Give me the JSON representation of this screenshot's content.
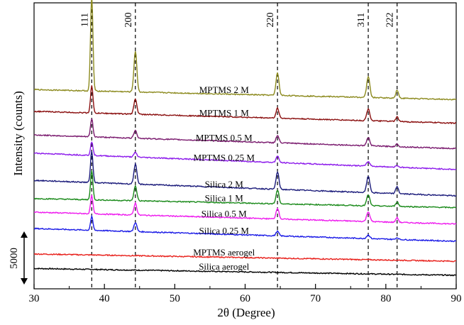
{
  "chart_data": {
    "type": "line",
    "title": "",
    "xlabel": "2θ (Degree)",
    "ylabel": "Intensity (counts)",
    "xlim": [
      30,
      90
    ],
    "x_ticks": [
      "30",
      "40",
      "50",
      "60",
      "70",
      "80",
      "90"
    ],
    "x_minor_step": 5,
    "y_ticks_shown": false,
    "scale_bar_label": "5000",
    "peak_lines": [
      {
        "label": "111",
        "x": 38.2
      },
      {
        "label": "200",
        "x": 44.4
      },
      {
        "label": "220",
        "x": 64.6
      },
      {
        "label": "311",
        "x": 77.5
      },
      {
        "label": "222",
        "x": 81.6
      }
    ],
    "series": [
      {
        "name": "Silica aerogel",
        "color": "#000000",
        "baseline_start": 1.3,
        "baseline_end": 0.55,
        "peak_heights": [
          0,
          0,
          0,
          0,
          0
        ],
        "label_x": 71
      },
      {
        "name": "MPTMS aerogel",
        "color": "#e8201b",
        "baseline_start": 2.9,
        "baseline_end": 2.1,
        "peak_heights": [
          0,
          0,
          0,
          0,
          0
        ],
        "label_x": 71
      },
      {
        "name": "Silica 0.25 M",
        "color": "#1a1ae6",
        "baseline_start": 5.7,
        "baseline_end": 4.3,
        "peak_heights": [
          1.5,
          1.0,
          0.5,
          0.4,
          0.2
        ],
        "label_x": 71
      },
      {
        "name": "Silica 0.5 M",
        "color": "#ee1bee",
        "baseline_start": 7.5,
        "baseline_end": 6.2,
        "peak_heights": [
          2.0,
          1.3,
          1.2,
          1.1,
          0.5
        ],
        "label_x": 71
      },
      {
        "name": "Silica 1 M",
        "color": "#1a8a1a",
        "baseline_start": 9.0,
        "baseline_end": 8.0,
        "peak_heights": [
          3.2,
          1.6,
          1.5,
          1.2,
          0.5
        ],
        "label_x": 71
      },
      {
        "name": "Silica 2 M",
        "color": "#1a1a7a",
        "baseline_start": 11.0,
        "baseline_end": 9.3,
        "peak_heights": [
          3.5,
          2.2,
          1.9,
          1.8,
          0.8
        ],
        "label_x": 71
      },
      {
        "name": "MPTMS 0.25 M",
        "color": "#8c1aeb",
        "baseline_start": 14.0,
        "baseline_end": 12.2,
        "peak_heights": [
          1.5,
          0.5,
          0.7,
          0.5,
          0.2
        ],
        "label_x": 71
      },
      {
        "name": "MPTMS 0.5 M",
        "color": "#7a1a6e",
        "baseline_start": 16.0,
        "baseline_end": 14.5,
        "peak_heights": [
          2.0,
          0.9,
          0.8,
          0.9,
          0.3
        ],
        "label_x": 71
      },
      {
        "name": "MPTMS 1 M",
        "color": "#8a0e0e",
        "baseline_start": 18.6,
        "baseline_end": 17.3,
        "peak_heights": [
          3.0,
          1.7,
          1.1,
          1.3,
          0.5
        ],
        "label_x": 71
      },
      {
        "name": "MPTMS 2 M",
        "color": "#8c8a1e",
        "baseline_start": 21.0,
        "baseline_end": 19.9,
        "peak_heights": [
          10.5,
          4.5,
          2.5,
          2.3,
          0.9
        ],
        "label_x": 71
      }
    ]
  }
}
